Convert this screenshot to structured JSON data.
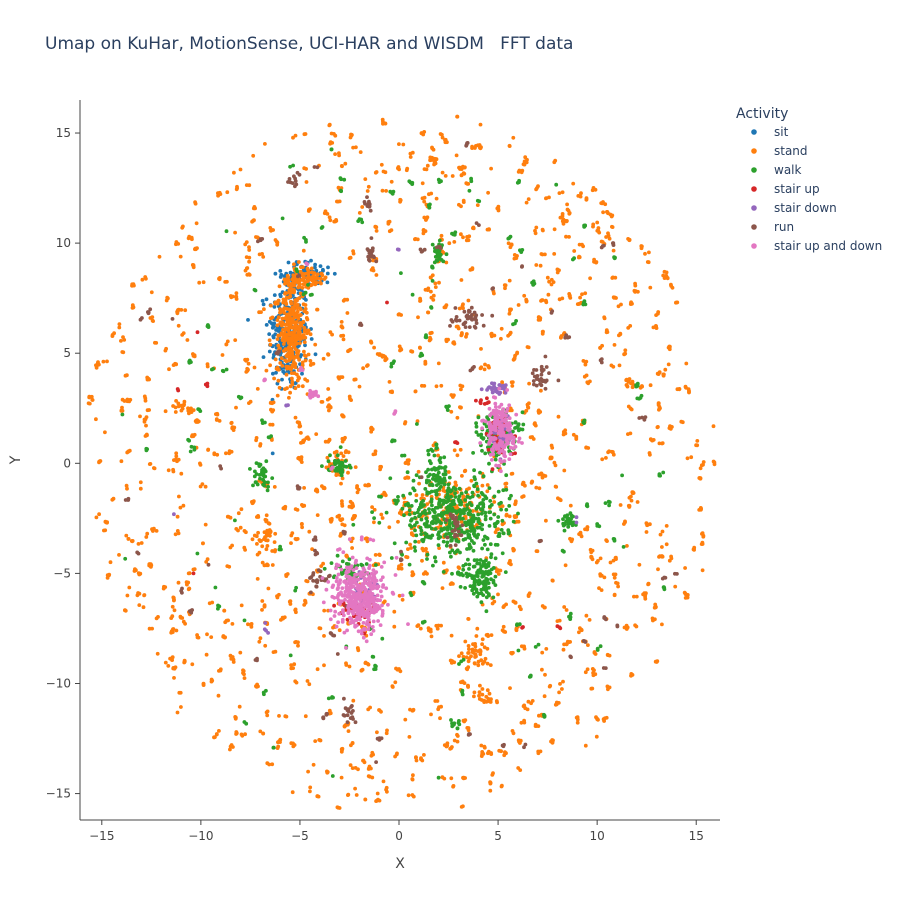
{
  "title": "Umap on KuHar, MotionSense, UCI-HAR and WISDM   FFT data",
  "chart_data": {
    "type": "scatter",
    "title": "Umap on KuHar, MotionSense, UCI-HAR and WISDM   FFT data",
    "xlabel": "X",
    "ylabel": "Y",
    "xlim": [
      -16.1,
      16.2
    ],
    "ylim": [
      -16.2,
      16.5
    ],
    "xticks": [
      -15,
      -10,
      -5,
      0,
      5,
      10,
      15
    ],
    "yticks": [
      -15,
      -10,
      -5,
      0,
      5,
      10,
      15
    ],
    "grid": false,
    "legend": {
      "title": "Activity",
      "placement": "top-right, outside plot",
      "entries": [
        "sit",
        "stand",
        "walk",
        "stair up",
        "stair down",
        "run",
        "stair up and down"
      ]
    },
    "series": [
      {
        "name": "sit",
        "color": "#1f77b4",
        "clusters": [
          {
            "x": -5.6,
            "y": 5.9,
            "rx": 1.0,
            "ry": 2.6,
            "n": 260
          },
          {
            "x": -4.6,
            "y": 8.6,
            "rx": 1.3,
            "ry": 0.6,
            "n": 80
          }
        ]
      },
      {
        "name": "stand",
        "color": "#ff7f0e",
        "clusters": [
          {
            "x": -5.4,
            "y": 6.0,
            "rx": 0.8,
            "ry": 2.4,
            "n": 320
          },
          {
            "x": -4.8,
            "y": 8.4,
            "rx": 1.0,
            "ry": 0.5,
            "n": 90
          },
          {
            "x": 2.5,
            "y": -2.0,
            "rx": 2.2,
            "ry": 1.6,
            "n": 150
          },
          {
            "x": 3.8,
            "y": -8.6,
            "rx": 0.8,
            "ry": 0.8,
            "n": 45
          },
          {
            "x": -3.0,
            "y": 0.0,
            "rx": 0.6,
            "ry": 0.6,
            "n": 30
          },
          {
            "x": -6.8,
            "y": -3.6,
            "rx": 0.6,
            "ry": 0.7,
            "n": 25
          },
          {
            "x": -11.0,
            "y": 2.6,
            "rx": 0.5,
            "ry": 0.3,
            "n": 15
          },
          {
            "x": 11.5,
            "y": 3.7,
            "rx": 0.4,
            "ry": 0.4,
            "n": 10
          },
          {
            "x": 4.3,
            "y": -10.5,
            "rx": 0.5,
            "ry": 0.4,
            "n": 12
          }
        ],
        "scatter": {
          "r": 16.0,
          "n": 950
        }
      },
      {
        "name": "walk",
        "color": "#2ca02c",
        "clusters": [
          {
            "x": 2.8,
            "y": -2.5,
            "rx": 2.6,
            "ry": 1.8,
            "n": 420
          },
          {
            "x": 4.2,
            "y": -5.3,
            "rx": 0.8,
            "ry": 1.2,
            "n": 110
          },
          {
            "x": 1.9,
            "y": -0.5,
            "rx": 0.6,
            "ry": 1.2,
            "n": 70
          },
          {
            "x": 5.0,
            "y": 1.4,
            "rx": 0.9,
            "ry": 1.0,
            "n": 150
          },
          {
            "x": -2.5,
            "y": -4.8,
            "rx": 0.9,
            "ry": 0.5,
            "n": 50
          },
          {
            "x": -7.0,
            "y": -0.6,
            "rx": 0.5,
            "ry": 0.6,
            "n": 35
          },
          {
            "x": -3.0,
            "y": 0.0,
            "rx": 0.6,
            "ry": 0.5,
            "n": 40
          },
          {
            "x": 2.0,
            "y": 9.5,
            "rx": 0.3,
            "ry": 0.6,
            "n": 30
          },
          {
            "x": 8.5,
            "y": -2.6,
            "rx": 0.4,
            "ry": 0.3,
            "n": 25
          },
          {
            "x": 2.8,
            "y": -11.8,
            "rx": 0.3,
            "ry": 0.3,
            "n": 10
          }
        ],
        "scatter": {
          "r": 15.0,
          "n": 110
        }
      },
      {
        "name": "stair up",
        "color": "#d62728",
        "clusters": [
          {
            "x": 5.0,
            "y": 1.3,
            "rx": 0.8,
            "ry": 1.0,
            "n": 45
          },
          {
            "x": -2.2,
            "y": -6.7,
            "rx": 0.9,
            "ry": 0.6,
            "n": 45
          },
          {
            "x": 4.3,
            "y": 2.8,
            "rx": 0.3,
            "ry": 0.2,
            "n": 8
          }
        ],
        "scatter": {
          "r": 12.0,
          "n": 8
        }
      },
      {
        "name": "stair down",
        "color": "#9467bd",
        "clusters": [
          {
            "x": 5.0,
            "y": 3.4,
            "rx": 0.6,
            "ry": 0.25,
            "n": 30
          },
          {
            "x": 5.2,
            "y": 1.3,
            "rx": 0.5,
            "ry": 0.9,
            "n": 35
          },
          {
            "x": -1.8,
            "y": -5.8,
            "rx": 0.8,
            "ry": 0.8,
            "n": 25
          }
        ],
        "scatter": {
          "r": 12.0,
          "n": 6
        }
      },
      {
        "name": "run",
        "color": "#8c564b",
        "clusters": [
          {
            "x": 3.5,
            "y": 6.6,
            "rx": 0.9,
            "ry": 0.5,
            "n": 40
          },
          {
            "x": 7.2,
            "y": 4.0,
            "rx": 0.6,
            "ry": 0.6,
            "n": 30
          },
          {
            "x": -4.0,
            "y": -5.2,
            "rx": 0.6,
            "ry": 0.4,
            "n": 25
          },
          {
            "x": -1.4,
            "y": 9.6,
            "rx": 0.2,
            "ry": 0.5,
            "n": 15
          },
          {
            "x": -1.5,
            "y": 11.8,
            "rx": 0.2,
            "ry": 0.3,
            "n": 12
          },
          {
            "x": -2.5,
            "y": -11.3,
            "rx": 0.4,
            "ry": 0.6,
            "n": 18
          },
          {
            "x": 2.8,
            "y": -3.0,
            "rx": 0.4,
            "ry": 0.8,
            "n": 25
          },
          {
            "x": -5.3,
            "y": 12.9,
            "rx": 0.3,
            "ry": 0.3,
            "n": 10
          }
        ],
        "scatter": {
          "r": 15.0,
          "n": 55
        }
      },
      {
        "name": "stair up and down",
        "color": "#e377c2",
        "clusters": [
          {
            "x": -2.0,
            "y": -6.0,
            "rx": 1.3,
            "ry": 1.6,
            "n": 400
          },
          {
            "x": 5.1,
            "y": 1.5,
            "rx": 0.7,
            "ry": 1.4,
            "n": 180
          },
          {
            "x": -4.4,
            "y": 3.1,
            "rx": 0.3,
            "ry": 0.2,
            "n": 15
          }
        ],
        "scatter": {
          "r": 12.0,
          "n": 5
        }
      }
    ]
  }
}
